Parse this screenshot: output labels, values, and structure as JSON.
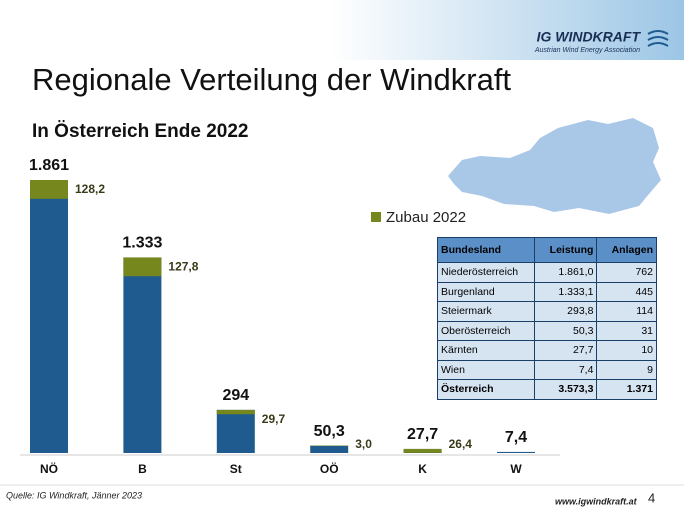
{
  "header": {
    "brand": "IG WINDKRAFT",
    "tagline": "Austrian Wind Energy Association"
  },
  "title": "Regionale Verteilung der Windkraft",
  "chart_data": {
    "type": "bar",
    "subtitle": "In Österreich Ende 2022",
    "categories": [
      "NÖ",
      "B",
      "St",
      "OÖ",
      "K",
      "W"
    ],
    "values": [
      1861,
      1333,
      294,
      50.3,
      27.7,
      7.4
    ],
    "value_labels": [
      "1.861",
      "1.333",
      "294",
      "50,3",
      "27,7",
      "7,4"
    ],
    "color": "#1f5b8e",
    "series": [
      {
        "name": "Zubau 2022",
        "color": "#76881d",
        "values": [
          128.2,
          127.8,
          29.7,
          3.0,
          26.4,
          null
        ],
        "value_labels": [
          "128,2",
          "127,8",
          "29,7",
          "3,0",
          "26,4",
          null
        ]
      }
    ]
  },
  "table": {
    "columns": [
      "Bundesland",
      "Leistung",
      "Anlagen"
    ],
    "rows": [
      [
        "Niederösterreich",
        "1.861,0",
        "762"
      ],
      [
        "Burgenland",
        "1.333,1",
        "445"
      ],
      [
        "Steiermark",
        "293,8",
        "114"
      ],
      [
        "Oberösterreich",
        "50,3",
        "31"
      ],
      [
        "Kärnten",
        "27,7",
        "10"
      ],
      [
        "Wien",
        "7,4",
        "9"
      ],
      [
        "Österreich",
        "3.573,3",
        "1.371"
      ]
    ]
  },
  "source": "Quelle: IG Windkraft, Jänner 2023",
  "url": "www.igwindkraft.at",
  "page": "4"
}
